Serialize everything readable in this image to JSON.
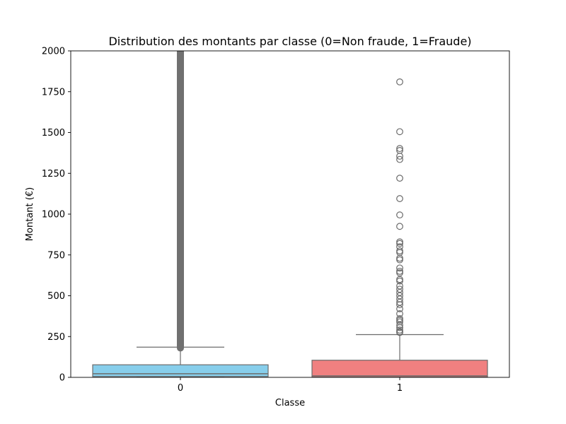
{
  "chart_data": {
    "type": "box",
    "title": "Distribution des montants par classe (0=Non fraude, 1=Fraude)",
    "xlabel": "Classe",
    "ylabel": "Montant (€)",
    "ylim": [
      0,
      2000
    ],
    "yticks": [
      0,
      250,
      500,
      750,
      1000,
      1250,
      1500,
      1750,
      2000
    ],
    "categories": [
      "0",
      "1"
    ],
    "grid": false,
    "legend": "none",
    "boxes": [
      {
        "category": "0",
        "color": "#87CEEB",
        "q1": 5,
        "median": 22,
        "q3": 77,
        "whisker_low": 0,
        "whisker_high": 185,
        "outlier_band": [
          180,
          2000
        ],
        "outliers": []
      },
      {
        "category": "1",
        "color": "#F08080",
        "q1": 1,
        "median": 9,
        "q3": 105,
        "whisker_low": 0,
        "whisker_high": 262,
        "outliers": [
          1810,
          1505,
          1402,
          1390,
          1355,
          1335,
          1220,
          1095,
          995,
          925,
          830,
          820,
          800,
          775,
          765,
          730,
          720,
          670,
          650,
          640,
          600,
          590,
          560,
          540,
          520,
          500,
          480,
          460,
          445,
          420,
          390,
          360,
          350,
          340,
          320,
          305,
          290,
          280,
          275
        ]
      }
    ]
  }
}
